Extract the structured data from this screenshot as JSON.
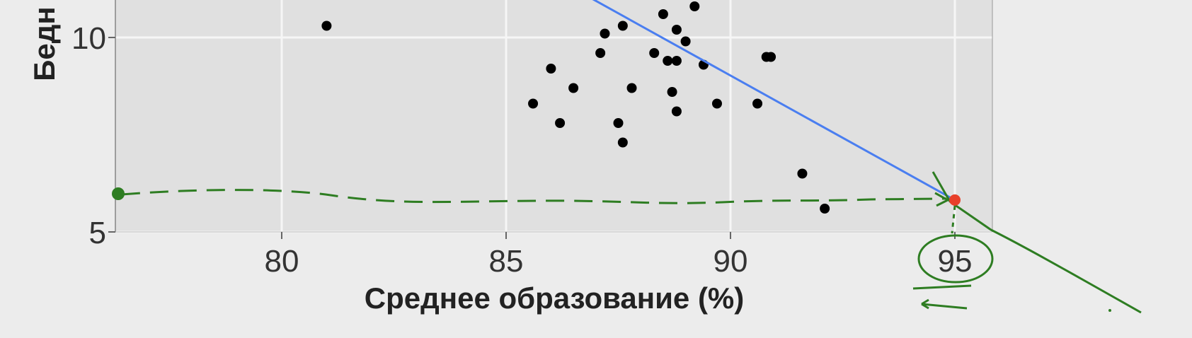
{
  "chart_data": {
    "type": "scatter",
    "title": "",
    "xlabel": "Среднее образование (%)",
    "ylabel": "Бедн",
    "xlim": [
      76.3,
      96.0
    ],
    "ylim": [
      5.0,
      11.2
    ],
    "x_ticks": [
      "80",
      "85",
      "90",
      "95"
    ],
    "y_ticks": [
      "5",
      "10"
    ],
    "grid": true,
    "legend": "none",
    "colors": {
      "panel": "#e0e0e0",
      "grid": "#f6f6f6",
      "points": "#000000",
      "regression": "#4a7ef0",
      "highlight": "#e8402a",
      "annotation": "#2e7d22"
    },
    "points": [
      {
        "x": 81.0,
        "y": 10.3
      },
      {
        "x": 85.6,
        "y": 8.3
      },
      {
        "x": 86.0,
        "y": 9.2
      },
      {
        "x": 86.2,
        "y": 7.8
      },
      {
        "x": 86.5,
        "y": 8.7
      },
      {
        "x": 87.1,
        "y": 9.6
      },
      {
        "x": 87.2,
        "y": 10.1
      },
      {
        "x": 87.5,
        "y": 7.8
      },
      {
        "x": 87.6,
        "y": 7.3
      },
      {
        "x": 87.6,
        "y": 10.3
      },
      {
        "x": 87.8,
        "y": 8.7
      },
      {
        "x": 88.3,
        "y": 9.6
      },
      {
        "x": 88.5,
        "y": 10.6
      },
      {
        "x": 88.6,
        "y": 9.4
      },
      {
        "x": 88.7,
        "y": 8.6
      },
      {
        "x": 88.8,
        "y": 9.4
      },
      {
        "x": 88.8,
        "y": 10.2
      },
      {
        "x": 88.8,
        "y": 8.1
      },
      {
        "x": 89.0,
        "y": 9.9
      },
      {
        "x": 89.2,
        "y": 10.8
      },
      {
        "x": 89.4,
        "y": 9.3
      },
      {
        "x": 89.7,
        "y": 8.3
      },
      {
        "x": 90.6,
        "y": 8.3
      },
      {
        "x": 90.8,
        "y": 9.5
      },
      {
        "x": 90.9,
        "y": 9.5
      },
      {
        "x": 91.6,
        "y": 6.5
      },
      {
        "x": 92.1,
        "y": 5.6
      }
    ],
    "regression_line": {
      "x": [
        86.8,
        95.0
      ],
      "y": [
        11.07,
        5.82
      ]
    },
    "highlight_point": {
      "x": 95.0,
      "y": 5.82
    },
    "annotation": {
      "circled_label": "95"
    }
  }
}
